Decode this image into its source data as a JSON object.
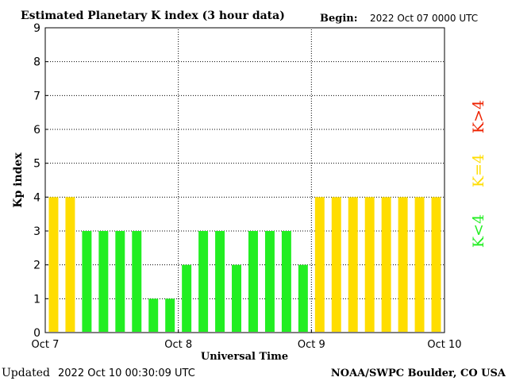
{
  "chart_data": {
    "type": "bar",
    "title": "Estimated Planetary K index (3 hour data)",
    "begin_label": "Begin:",
    "begin_value": "2022 Oct 07 0000 UTC",
    "xlabel": "Universal Time",
    "ylabel": "Kp index",
    "ylim": [
      0,
      9
    ],
    "yticks": [
      "0",
      "1",
      "2",
      "3",
      "4",
      "5",
      "6",
      "7",
      "8",
      "9"
    ],
    "xticks": [
      "Oct 7",
      "Oct 8",
      "Oct 9",
      "Oct 10"
    ],
    "grid": "dotted",
    "bins_per_day": 8,
    "values": [
      4,
      4,
      3,
      3,
      3,
      3,
      1,
      1,
      2,
      3,
      3,
      2,
      3,
      3,
      3,
      2,
      4,
      4,
      4,
      4,
      4,
      4,
      4,
      4
    ],
    "legend": [
      {
        "label": "K<4",
        "color": "#22ee22"
      },
      {
        "label": "K=4",
        "color": "#ffdd00"
      },
      {
        "label": "K>4",
        "color": "#ee2200"
      }
    ],
    "colors": {
      "below4": "#22ee22",
      "equal4": "#ffdd00",
      "above4": "#ee2200"
    }
  },
  "footer": {
    "updated_label": "Updated",
    "updated_value": "2022 Oct 10 00:30:09 UTC",
    "credit": "NOAA/SWPC Boulder, CO USA"
  }
}
